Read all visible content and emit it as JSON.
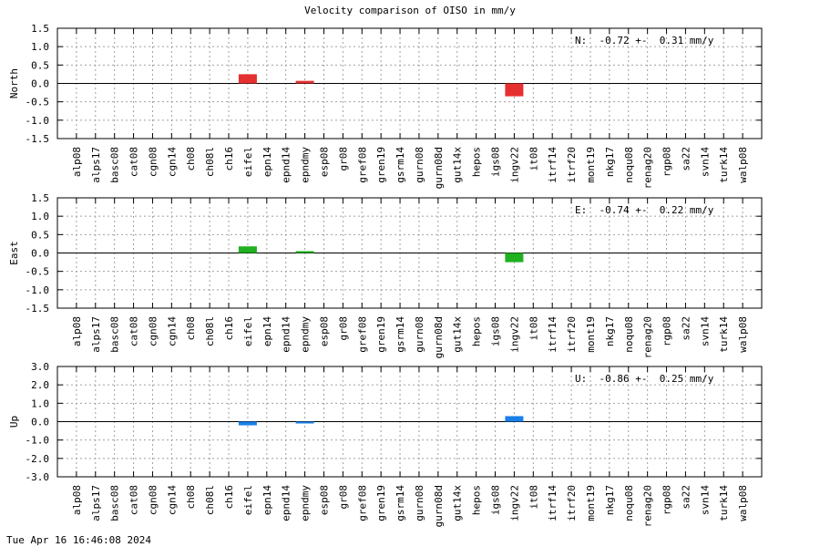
{
  "title": "Velocity comparison of OISO in mm/y",
  "footer": "Tue Apr 16 16:46:08 2024",
  "chart_data": [
    {
      "type": "bar",
      "ylabel": "North",
      "ylim": [
        -1.5,
        1.5
      ],
      "yticks": [
        "1.5",
        "1.0",
        "0.5",
        "0.0",
        "-0.5",
        "-1.0",
        "-1.5"
      ],
      "grid": true,
      "annotation": "N:  -0.72 +-  0.31 mm/y",
      "color": "#e53030",
      "categories": [
        "alp08",
        "alps17",
        "basc08",
        "cat08",
        "cgn08",
        "cgn14",
        "ch08",
        "ch08l",
        "ch16",
        "eifel",
        "epn14",
        "epnd14",
        "epndmy",
        "esp08",
        "gr08",
        "gref08",
        "gren19",
        "gsrm14",
        "gurn08",
        "gurn08d",
        "gut14x",
        "hepos",
        "igs08",
        "ingv22",
        "it08",
        "itrf14",
        "itrf20",
        "mont19",
        "nkg17",
        "noqu08",
        "renag20",
        "rgp08",
        "sa22",
        "svn14",
        "turk14",
        "walp08"
      ],
      "values": [
        0,
        0,
        0,
        0,
        0,
        0,
        0,
        0,
        0,
        0.25,
        0,
        0,
        0.07,
        0,
        0,
        0,
        0,
        0,
        0,
        0,
        0,
        0,
        0,
        -0.35,
        0,
        0,
        0,
        0,
        0,
        0,
        0,
        0,
        0,
        0,
        0,
        0
      ]
    },
    {
      "type": "bar",
      "ylabel": "East",
      "ylim": [
        -1.5,
        1.5
      ],
      "yticks": [
        "1.5",
        "1.0",
        "0.5",
        "0.0",
        "-0.5",
        "-1.0",
        "-1.5"
      ],
      "grid": true,
      "annotation": "E:  -0.74 +-  0.22 mm/y",
      "color": "#20b020",
      "categories": [
        "alp08",
        "alps17",
        "basc08",
        "cat08",
        "cgn08",
        "cgn14",
        "ch08",
        "ch08l",
        "ch16",
        "eifel",
        "epn14",
        "epnd14",
        "epndmy",
        "esp08",
        "gr08",
        "gref08",
        "gren19",
        "gsrm14",
        "gurn08",
        "gurn08d",
        "gut14x",
        "hepos",
        "igs08",
        "ingv22",
        "it08",
        "itrf14",
        "itrf20",
        "mont19",
        "nkg17",
        "noqu08",
        "renag20",
        "rgp08",
        "sa22",
        "svn14",
        "turk14",
        "walp08"
      ],
      "values": [
        0,
        0,
        0,
        0,
        0,
        0,
        0,
        0,
        0,
        0.18,
        0,
        0,
        0.05,
        0,
        0,
        0,
        0,
        0,
        0,
        0,
        0,
        0,
        0,
        -0.25,
        0,
        0,
        0,
        0,
        0,
        0,
        0,
        0,
        0,
        0,
        0,
        0
      ]
    },
    {
      "type": "bar",
      "ylabel": "Up",
      "ylim": [
        -3.0,
        3.0
      ],
      "yticks": [
        "3.0",
        "2.0",
        "1.0",
        "0.0",
        "-1.0",
        "-2.0",
        "-3.0"
      ],
      "grid": true,
      "annotation": "U:  -0.86 +-  0.25 mm/y",
      "color": "#1a80e8",
      "categories": [
        "alp08",
        "alps17",
        "basc08",
        "cat08",
        "cgn08",
        "cgn14",
        "ch08",
        "ch08l",
        "ch16",
        "eifel",
        "epn14",
        "epnd14",
        "epndmy",
        "esp08",
        "gr08",
        "gref08",
        "gren19",
        "gsrm14",
        "gurn08",
        "gurn08d",
        "gut14x",
        "hepos",
        "igs08",
        "ingv22",
        "it08",
        "itrf14",
        "itrf20",
        "mont19",
        "nkg17",
        "noqu08",
        "renag20",
        "rgp08",
        "sa22",
        "svn14",
        "turk14",
        "walp08"
      ],
      "values": [
        0,
        0,
        0,
        0,
        0,
        0,
        0,
        0,
        0,
        -0.2,
        0,
        0,
        -0.1,
        0,
        0,
        0,
        0,
        0,
        0,
        0,
        0,
        0,
        0,
        0.3,
        0,
        0,
        0,
        0,
        0,
        0,
        0,
        0,
        0,
        0,
        0,
        0
      ]
    }
  ]
}
